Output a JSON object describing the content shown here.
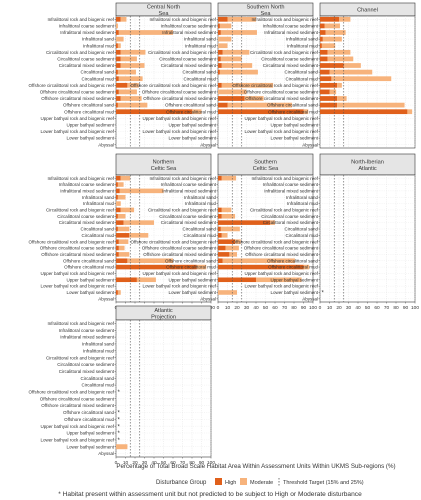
{
  "chart_data": {
    "type": "bar",
    "orientation": "horizontal",
    "stacked": true,
    "xlabel": "Percentage of Total Broad Scale Habitat Area Within Assessment Units Within UKMS Sub-regions (%)",
    "xlim": [
      0,
      100
    ],
    "x_ticks": [
      "0",
      "10",
      "20",
      "30",
      "40",
      "50",
      "60",
      "70",
      "80",
      "90",
      "100"
    ],
    "threshold_lines": [
      15,
      25
    ],
    "legend": {
      "title": "Disturbance Group",
      "high_label": "High",
      "moderate_label": "Moderate",
      "threshold_label": "Threshold Target (15% and 25%)"
    },
    "colors": {
      "high": "#e0601b",
      "moderate": "#f7b37c",
      "threshold": "#555555",
      "strip": "#e5e5e5"
    },
    "footnote": "* Habitat present within assessment unit but not predicted to be subject to High or Moderate disturbance",
    "panels": [
      {
        "title": [
          "Central North",
          "Sea"
        ],
        "categories": [
          "Infralittoral rock and biogenic reef",
          "Infralittoral coarse sediment",
          "Infralittoral mixed sediment",
          "Infralittoral sand",
          "Infralittoral mud",
          "Circalittoral rock and biogenic reef",
          "Circalittoral coarse sediment",
          "Circalittoral mixed sediment",
          "Circalittoral sand",
          "Circalittoral mud",
          "Offshore circalittoral rock and biogenic reef",
          "Offshore circalittoral coarse sediment",
          "Offshore circalittoral mixed sediment",
          "Offshore circalittoral sand",
          "Offshore circalittoral mud",
          "Upper bathyal rock and biogenic reef",
          "Upper bathyal sediment",
          "Lower bathyal rock and biogenic reef",
          "Lower bathyal sediment",
          "Abyssal"
        ],
        "series": [
          {
            "name": "High",
            "values": [
              5,
              0,
              3,
              0,
              2,
              5,
              5,
              5,
              2,
              3,
              12,
              3,
              5,
              2,
              80,
              0,
              0,
              0,
              0,
              0
            ]
          },
          {
            "name": "Moderate",
            "values": [
              6,
              2,
              57,
              8,
              3,
              26,
              17,
              25,
              19,
              25,
              12,
              19,
              22,
              31,
              10,
              0,
              0,
              0,
              0,
              0
            ]
          }
        ],
        "star": [
          false,
          false,
          false,
          false,
          false,
          false,
          false,
          false,
          false,
          false,
          false,
          false,
          false,
          false,
          false,
          false,
          false,
          false,
          false,
          false
        ]
      },
      {
        "title": [
          "Southern North",
          "Sea"
        ],
        "categories": [
          "Infralittoral rock and biogenic reef",
          "Infralittoral coarse sediment",
          "Infralittoral mixed sediment",
          "Infralittoral sand",
          "Infralittoral mud",
          "Circalittoral rock and biogenic reef",
          "Circalittoral coarse sediment",
          "Circalittoral mixed sediment",
          "Circalittoral sand",
          "Circalittoral mud",
          "Offshore circalittoral rock and biogenic reef",
          "Offshore circalittoral coarse sediment",
          "Offshore circalittoral mixed sediment",
          "Offshore circalittoral sand",
          "Offshore circalittoral mud",
          "Upper bathyal rock and biogenic reef",
          "Upper bathyal sediment",
          "Lower bathyal rock and biogenic reef",
          "Lower bathyal sediment",
          "Abyssal"
        ],
        "series": [
          {
            "name": "High",
            "values": [
              10,
              2,
              3,
              0,
              0,
              5,
              3,
              4,
              2,
              0,
              4,
              0,
              28,
              10,
              90,
              0,
              0,
              0,
              0,
              0
            ]
          },
          {
            "name": "Moderate",
            "values": [
              30,
              12,
              38,
              14,
              10,
              28,
              22,
              32,
              40,
              0,
              54,
              30,
              20,
              68,
              5,
              0,
              0,
              0,
              0,
              0
            ]
          }
        ],
        "star": [
          false,
          false,
          false,
          false,
          false,
          false,
          false,
          false,
          false,
          false,
          false,
          false,
          false,
          false,
          false,
          false,
          false,
          false,
          false,
          false
        ]
      },
      {
        "title": [
          "Channel"
        ],
        "categories": [
          "Infralittoral rock and biogenic reef",
          "Infralittoral coarse sediment",
          "Infralittoral mixed sediment",
          "Infralittoral sand",
          "Infralittoral mud",
          "Circalittoral rock and biogenic reef",
          "Circalittoral coarse sediment",
          "Circalittoral mixed sediment",
          "Circalittoral sand",
          "Circalittoral mud",
          "Offshore circalittoral rock and biogenic reef",
          "Offshore circalittoral coarse sediment",
          "Offshore circalittoral mixed sediment",
          "Offshore circalittoral sand",
          "Offshore circalittoral mud",
          "Upper bathyal rock and biogenic reef",
          "Upper bathyal sediment",
          "Lower bathyal rock and biogenic reef",
          "Lower bathyal sediment",
          "Abyssal"
        ],
        "series": [
          {
            "name": "High",
            "values": [
              20,
              5,
              6,
              3,
              2,
              8,
              8,
              25,
              10,
              12,
              18,
              10,
              18,
              18,
              92,
              0,
              0,
              0,
              0,
              0
            ]
          },
          {
            "name": "Moderate",
            "values": [
              12,
              16,
              21,
              20,
              14,
              24,
              27,
              18,
              45,
              63,
              5,
              7,
              10,
              71,
              5,
              0,
              0,
              0,
              0,
              0
            ]
          }
        ],
        "star": [
          false,
          false,
          false,
          false,
          false,
          false,
          false,
          false,
          false,
          false,
          false,
          false,
          false,
          false,
          false,
          false,
          false,
          false,
          false,
          false
        ]
      },
      {
        "title": [
          "Northern",
          "Celtic Sea"
        ],
        "categories": [
          "Infralittoral rock and biogenic reef",
          "Infralittoral coarse sediment",
          "Infralittoral mixed sediment",
          "Infralittoral sand",
          "Infralittoral mud",
          "Circalittoral rock and biogenic reef",
          "Circalittoral coarse sediment",
          "Circalittoral mixed sediment",
          "Circalittoral sand",
          "Circalittoral mud",
          "Offshore circalittoral rock and biogenic reef",
          "Offshore circalittoral coarse sediment",
          "Offshore circalittoral mixed sediment",
          "Offshore circalittoral sand",
          "Offshore circalittoral mud",
          "Upper bathyal rock and biogenic reef",
          "Upper bathyal sediment",
          "Lower bathyal rock and biogenic reef",
          "Lower bathyal sediment",
          "Abyssal"
        ],
        "series": [
          {
            "name": "High",
            "values": [
              5,
              2,
              4,
              2,
              0,
              5,
              2,
              8,
              2,
              14,
              3,
              3,
              3,
              12,
              85,
              0,
              22,
              0,
              2,
              0
            ]
          },
          {
            "name": "Moderate",
            "values": [
              10,
              6,
              46,
              8,
              5,
              14,
              8,
              32,
              12,
              20,
              10,
              6,
              11,
              48,
              10,
              0,
              20,
              0,
              3,
              0
            ]
          }
        ],
        "star": [
          false,
          false,
          false,
          false,
          false,
          false,
          false,
          false,
          false,
          false,
          false,
          false,
          false,
          false,
          false,
          false,
          false,
          false,
          false,
          false
        ]
      },
      {
        "title": [
          "Southern",
          "Celtic Sea"
        ],
        "categories": [
          "Infralittoral rock and biogenic reef",
          "Infralittoral coarse sediment",
          "Infralittoral mixed sediment",
          "Infralittoral sand",
          "Infralittoral mud",
          "Circalittoral rock and biogenic reef",
          "Circalittoral coarse sediment",
          "Circalittoral mixed sediment",
          "Circalittoral sand",
          "Circalittoral mud",
          "Offshore circalittoral rock and biogenic reef",
          "Offshore circalittoral coarse sediment",
          "Offshore circalittoral mixed sediment",
          "Offshore circalittoral sand",
          "Offshore circalittoral mud",
          "Upper bathyal rock and biogenic reef",
          "Upper bathyal sediment",
          "Lower bathyal rock and biogenic reef",
          "Lower bathyal sediment",
          "Abyssal"
        ],
        "series": [
          {
            "name": "High",
            "values": [
              4,
              0,
              0,
              0,
              0,
              4,
              4,
              55,
              3,
              4,
              18,
              8,
              12,
              5,
              90,
              0,
              40,
              0,
              0,
              0
            ]
          },
          {
            "name": "Moderate",
            "values": [
              15,
              0,
              0,
              0,
              0,
              10,
              14,
              5,
              20,
              6,
              6,
              14,
              8,
              76,
              6,
              0,
              48,
              0,
              20,
              0
            ]
          }
        ],
        "star": [
          false,
          false,
          false,
          false,
          false,
          false,
          false,
          false,
          false,
          false,
          false,
          false,
          false,
          false,
          false,
          false,
          false,
          false,
          false,
          false
        ]
      },
      {
        "title": [
          "North-Iberian",
          "Atlantic"
        ],
        "categories": [
          "Infralittoral rock and biogenic reef",
          "Infralittoral coarse sediment",
          "Infralittoral mixed sediment",
          "Infralittoral sand",
          "Infralittoral mud",
          "Circalittoral rock and biogenic reef",
          "Circalittoral coarse sediment",
          "Circalittoral mixed sediment",
          "Circalittoral sand",
          "Circalittoral mud",
          "Offshore circalittoral rock and biogenic reef",
          "Offshore circalittoral coarse sediment",
          "Offshore circalittoral mixed sediment",
          "Offshore circalittoral sand",
          "Offshore circalittoral mud",
          "Upper bathyal rock and biogenic reef",
          "Upper bathyal sediment",
          "Lower bathyal rock and biogenic reef",
          "Lower bathyal sediment",
          "Abyssal"
        ],
        "series": [
          {
            "name": "High",
            "values": [
              0,
              0,
              0,
              0,
              0,
              0,
              0,
              0,
              0,
              0,
              0,
              0,
              0,
              0,
              0,
              0,
              0,
              0,
              0,
              0
            ]
          },
          {
            "name": "Moderate",
            "values": [
              0,
              0,
              0,
              0,
              0,
              0,
              0,
              0,
              0,
              0,
              0,
              0,
              0,
              0,
              0,
              0,
              0,
              0,
              0,
              0
            ]
          }
        ],
        "star": [
          false,
          false,
          false,
          false,
          false,
          false,
          false,
          false,
          false,
          false,
          false,
          false,
          false,
          false,
          false,
          false,
          false,
          false,
          true,
          false
        ]
      },
      {
        "title": [
          "Atlantic",
          "Projection"
        ],
        "categories": [
          "Infralittoral rock and biogenic reef",
          "Infralittoral coarse sediment",
          "Infralittoral mixed sediment",
          "Infralittoral sand",
          "Infralittoral mud",
          "Circalittoral rock and biogenic reef",
          "Circalittoral coarse sediment",
          "Circalittoral mixed sediment",
          "Circalittoral sand",
          "Circalittoral mud",
          "Offshore circalittoral rock and biogenic reef",
          "Offshore circalittoral coarse sediment",
          "Offshore circalittoral mixed sediment",
          "Offshore circalittoral sand",
          "Offshore circalittoral mud",
          "Upper bathyal rock and biogenic reef",
          "Upper bathyal sediment",
          "Lower bathyal rock and biogenic reef",
          "Lower bathyal sediment",
          "Abyssal"
        ],
        "series": [
          {
            "name": "High",
            "values": [
              0,
              0,
              0,
              0,
              0,
              0,
              0,
              0,
              0,
              0,
              0,
              0,
              0,
              0,
              0,
              0,
              0,
              0,
              0,
              0
            ]
          },
          {
            "name": "Moderate",
            "values": [
              0,
              0,
              0,
              0,
              0,
              0,
              0,
              0,
              0,
              0,
              0,
              0,
              0,
              0,
              0,
              0,
              0,
              0,
              12,
              0
            ]
          }
        ],
        "star": [
          false,
          false,
          false,
          false,
          false,
          false,
          false,
          false,
          false,
          false,
          true,
          false,
          false,
          true,
          true,
          true,
          true,
          true,
          false,
          false
        ]
      }
    ]
  }
}
